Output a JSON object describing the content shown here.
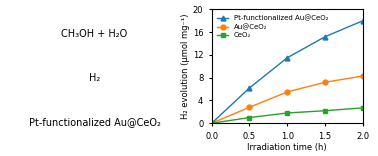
{
  "chart_data": {
    "type": "line",
    "xlabel": "Irradiation time (h)",
    "ylabel": "H₂ evolution (μmol mg⁻¹)",
    "x": [
      0,
      0.5,
      1.0,
      1.5,
      2.0
    ],
    "series": [
      {
        "name": "Pt-functionalized Au@CeO₂",
        "values": [
          0,
          6.2,
          11.5,
          15.2,
          18.0
        ],
        "marker": "^",
        "line_style": "solid"
      },
      {
        "name": "Au@CeO₂",
        "values": [
          0,
          2.8,
          5.5,
          7.2,
          8.3
        ],
        "marker": "o",
        "line_style": "solid"
      },
      {
        "name": "CeO₂",
        "values": [
          0,
          1.0,
          1.8,
          2.2,
          2.7
        ],
        "marker": "s",
        "line_style": "solid"
      }
    ],
    "xlim": [
      0,
      2.0
    ],
    "ylim": [
      0,
      20
    ],
    "xticks": [
      0.0,
      0.5,
      1.0,
      1.5,
      2.0
    ],
    "yticks": [
      0,
      4,
      8,
      12,
      16,
      20
    ],
    "legend": "upper left",
    "annotations": [
      "CH₃OH + H₂O",
      "H₂",
      "Pt-functionalized Au@CeO₂"
    ]
  }
}
